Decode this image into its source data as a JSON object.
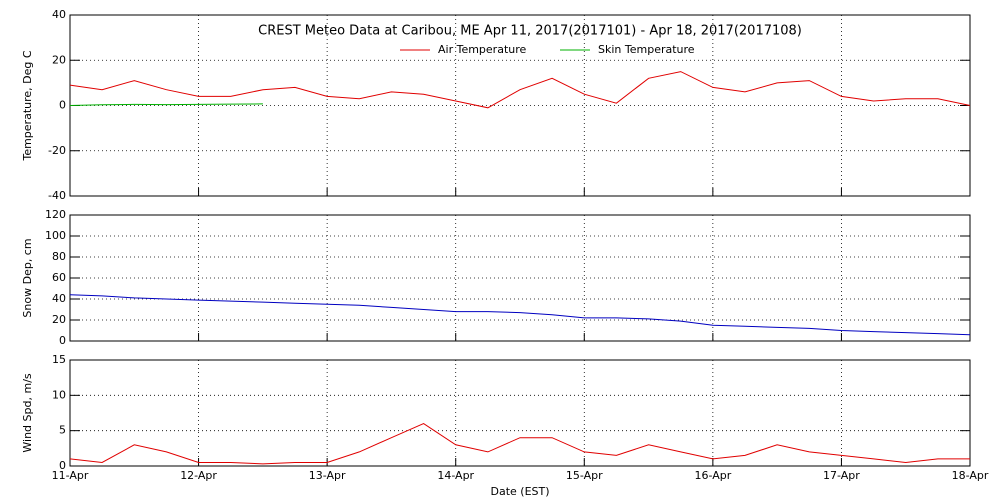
{
  "chart_data": [
    {
      "type": "line",
      "title": "CREST Meteo Data at Caribou, ME   Apr 11, 2017(2017101) - Apr 18, 2017(2017108)",
      "y_label": "Temperature, Deg C",
      "x": [
        0,
        0.25,
        0.5,
        0.75,
        1,
        1.25,
        1.5,
        1.75,
        2,
        2.25,
        2.5,
        2.75,
        3,
        3.25,
        3.5,
        3.75,
        4,
        4.25,
        4.5,
        4.75,
        5,
        5.25,
        5.5,
        5.75,
        6,
        6.25,
        6.5,
        6.75,
        7
      ],
      "xlim": [
        0,
        7
      ],
      "series": [
        {
          "name": "Air Temperature",
          "color": "#e00000",
          "values": [
            9,
            7,
            11,
            7,
            4,
            4,
            7,
            8,
            4,
            3,
            6,
            5,
            2,
            -1,
            7,
            12,
            5,
            1,
            12,
            15,
            8,
            6,
            10,
            11,
            4,
            2,
            3,
            3,
            0
          ]
        },
        {
          "name": "Skin Temperature",
          "color": "#00b000",
          "values": [
            0,
            0.3,
            0.5,
            0.4,
            0.5,
            0.6,
            0.7,
            null,
            null,
            null,
            null,
            null,
            null,
            null,
            null,
            null,
            null,
            null,
            null,
            null,
            null,
            null,
            null,
            null,
            null,
            null,
            null,
            null,
            null
          ]
        }
      ],
      "ylim": [
        -40,
        40
      ],
      "yticks": [
        -40,
        -20,
        0,
        20,
        40
      ],
      "grid": true,
      "legend": "top"
    },
    {
      "type": "line",
      "y_label": "Snow Dep, cm",
      "x": [
        0,
        0.25,
        0.5,
        0.75,
        1,
        1.25,
        1.5,
        1.75,
        2,
        2.25,
        2.5,
        2.75,
        3,
        3.25,
        3.5,
        3.75,
        4,
        4.25,
        4.5,
        4.75,
        5,
        5.25,
        5.5,
        5.75,
        6,
        6.25,
        6.5,
        6.75,
        7
      ],
      "xlim": [
        0,
        7
      ],
      "series": [
        {
          "name": "Snow Depth",
          "color": "#0000c0",
          "values": [
            44,
            43,
            41,
            40,
            39,
            38,
            37,
            36,
            35,
            34,
            32,
            30,
            28,
            28,
            27,
            25,
            22,
            22,
            21,
            19,
            15,
            14,
            13,
            12,
            10,
            9,
            8,
            7,
            6
          ]
        }
      ],
      "ylim": [
        0,
        120
      ],
      "yticks": [
        0,
        20,
        40,
        60,
        80,
        100,
        120
      ],
      "grid": true
    },
    {
      "type": "line",
      "y_label": "Wind Spd, m/s",
      "x_label": "Date (EST)",
      "x": [
        0,
        0.25,
        0.5,
        0.75,
        1,
        1.25,
        1.5,
        1.75,
        2,
        2.25,
        2.5,
        2.75,
        3,
        3.25,
        3.5,
        3.75,
        4,
        4.25,
        4.5,
        4.75,
        5,
        5.25,
        5.5,
        5.75,
        6,
        6.25,
        6.5,
        6.75,
        7
      ],
      "xlim": [
        0,
        7
      ],
      "xticks": [
        {
          "value": 0,
          "label": "11-Apr"
        },
        {
          "value": 1,
          "label": "12-Apr"
        },
        {
          "value": 2,
          "label": "13-Apr"
        },
        {
          "value": 3,
          "label": "14-Apr"
        },
        {
          "value": 4,
          "label": "15-Apr"
        },
        {
          "value": 5,
          "label": "16-Apr"
        },
        {
          "value": 6,
          "label": "17-Apr"
        },
        {
          "value": 7,
          "label": "18-Apr"
        }
      ],
      "series": [
        {
          "name": "Wind Speed",
          "color": "#e00000",
          "values": [
            1,
            0.5,
            3,
            2,
            0.5,
            0.5,
            0.3,
            0.5,
            0.5,
            2,
            4,
            6,
            3,
            2,
            4,
            4,
            2,
            1.5,
            3,
            2,
            1,
            1.5,
            3,
            2,
            1.5,
            1,
            0.5,
            1,
            1
          ]
        }
      ],
      "ylim": [
        0,
        15
      ],
      "yticks": [
        0,
        5,
        10,
        15
      ],
      "grid": true
    }
  ]
}
